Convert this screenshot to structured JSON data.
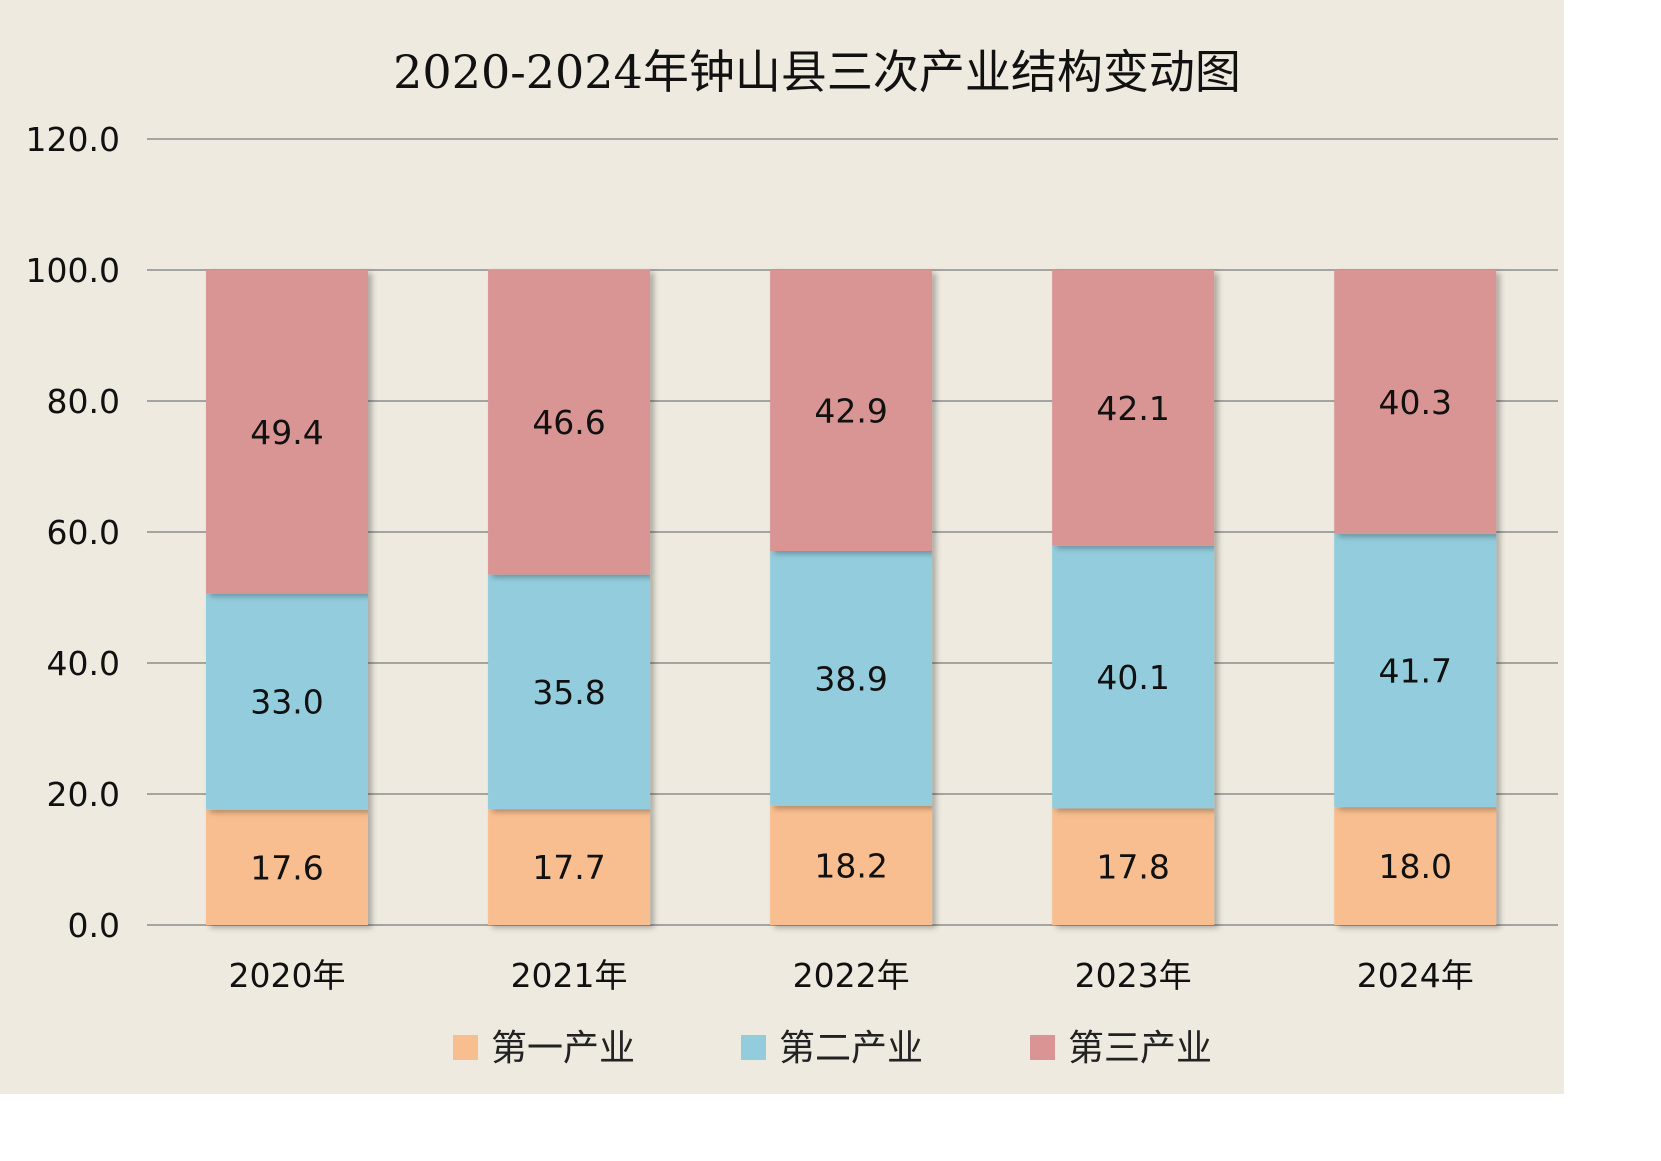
{
  "chart_data": {
    "type": "bar",
    "stacked": true,
    "title": "2020-2024年钟山县三次产业结构变动图",
    "xlabel": "",
    "ylabel": "",
    "categories": [
      "2020年",
      "2021年",
      "2022年",
      "2023年",
      "2024年"
    ],
    "series": [
      {
        "name": "第一产业",
        "color": "#f9be8f",
        "values": [
          17.6,
          17.7,
          18.2,
          17.8,
          18.0
        ]
      },
      {
        "name": "第二产业",
        "color": "#93cddd",
        "values": [
          33.0,
          35.8,
          38.9,
          40.1,
          41.7
        ]
      },
      {
        "name": "第三产业",
        "color": "#d99594",
        "values": [
          49.4,
          46.6,
          42.9,
          42.1,
          40.3
        ]
      }
    ],
    "ylim": [
      0,
      120
    ],
    "yticks": [
      "0.0",
      "20.0",
      "40.0",
      "60.0",
      "80.0",
      "100.0",
      "120.0"
    ],
    "grid": true,
    "legend_position": "bottom",
    "background_color": "#eeeae0"
  }
}
